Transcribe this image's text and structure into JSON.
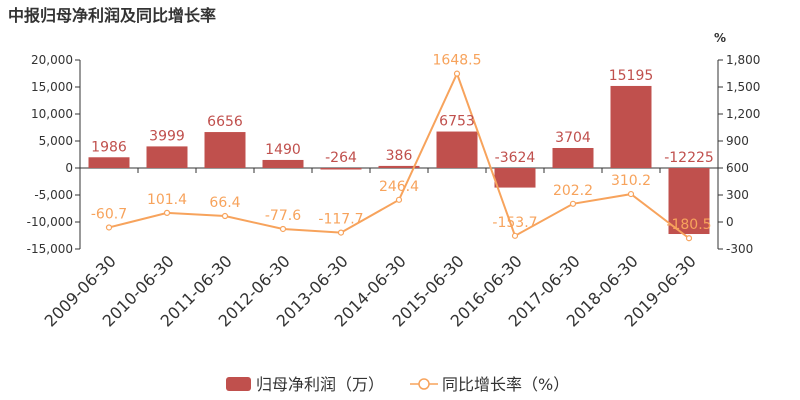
{
  "chart_data": {
    "type": "bar",
    "title": "中报归母净利润及同比增长率",
    "categories": [
      "2009-06-30",
      "2010-06-30",
      "2011-06-30",
      "2012-06-30",
      "2013-06-30",
      "2014-06-30",
      "2015-06-30",
      "2016-06-30",
      "2017-06-30",
      "2018-06-30",
      "2019-06-30"
    ],
    "series": [
      {
        "name": "归母净利润（万）",
        "type": "bar",
        "axis": "left",
        "color": "#c0504d",
        "values": [
          1986,
          3999,
          6656,
          1490,
          -264,
          386,
          6753,
          -3624,
          3704,
          15195,
          -12225
        ],
        "labels": [
          "1986",
          "3999",
          "6656",
          "1490",
          "-264",
          "386",
          "6753",
          "-3624",
          "3704",
          "15195",
          "-12225"
        ]
      },
      {
        "name": "同比增长率（%）",
        "type": "line",
        "axis": "right",
        "color": "#f7a35c",
        "values": [
          -60.7,
          101.4,
          66.4,
          -77.6,
          -117.7,
          246.4,
          1648.5,
          -153.7,
          202.2,
          310.2,
          -180.5
        ],
        "labels": [
          "-60.7",
          "101.4",
          "66.4",
          "-77.6",
          "-117.7",
          "246.4",
          "1648.5",
          "-153.7",
          "202.2",
          "310.2",
          "-180.5"
        ]
      }
    ],
    "y_left": {
      "min": -15000,
      "max": 20000,
      "ticks": [
        20000,
        15000,
        10000,
        5000,
        0,
        -5000,
        -10000,
        -15000
      ],
      "tick_labels": [
        "20,000",
        "15,000",
        "10,000",
        "5,000",
        "0",
        "-5,000",
        "-10,000",
        "-15,000"
      ]
    },
    "y_right": {
      "min": -300,
      "max": 1800,
      "unit": "%",
      "ticks": [
        1800,
        1500,
        1200,
        900,
        600,
        300,
        0,
        -300
      ],
      "tick_labels": [
        "1,800",
        "1,500",
        "1,200",
        "900",
        "600",
        "300",
        "0",
        "-300"
      ]
    },
    "grid": false,
    "legend_position": "bottom-center"
  }
}
